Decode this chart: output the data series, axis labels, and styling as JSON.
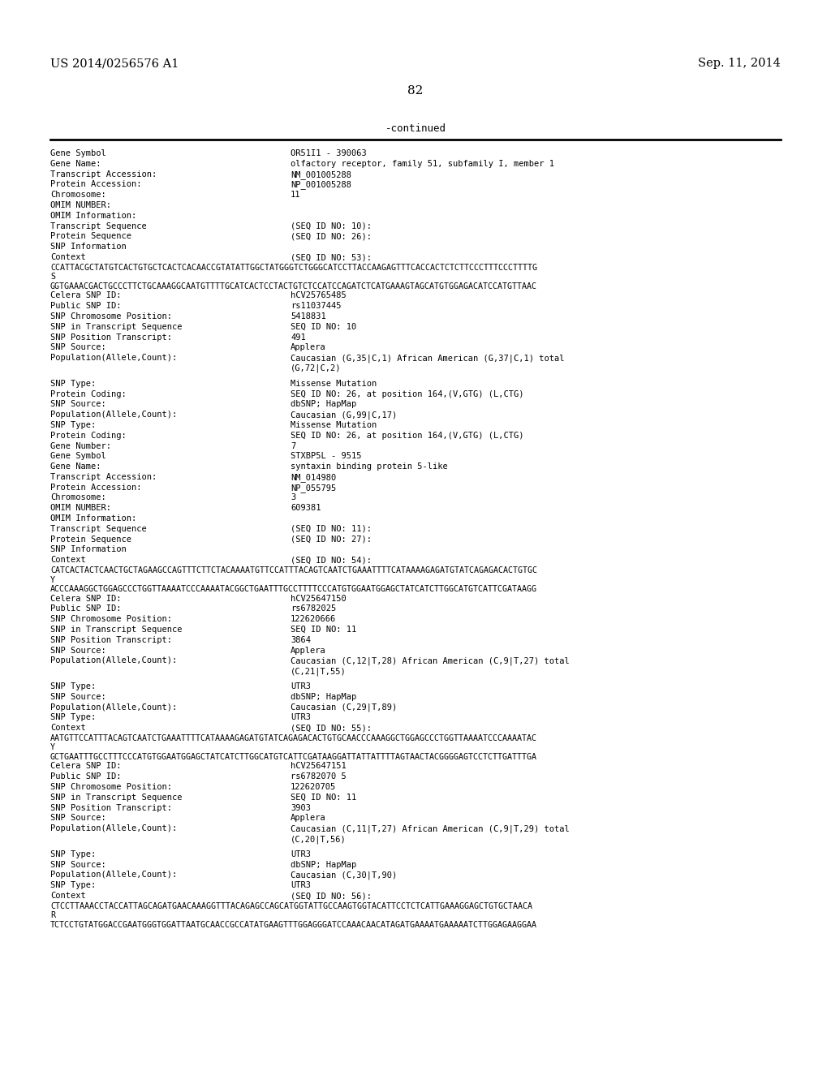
{
  "header_left": "US 2014/0256576 A1",
  "header_right": "Sep. 11, 2014",
  "page_number": "82",
  "continued_label": "-continued",
  "background_color": "#ffffff",
  "text_color": "#000000",
  "lines": [
    {
      "type": "normal",
      "label": "Gene Symbol",
      "value": "OR51I1 - 390063"
    },
    {
      "type": "normal",
      "label": "Gene Name:",
      "value": "olfactory receptor, family 51, subfamily I, member 1"
    },
    {
      "type": "normal",
      "label": "Transcript Accession:",
      "value": "NM_001005288"
    },
    {
      "type": "normal",
      "label": "Protein Accession:",
      "value": "NP_001005288"
    },
    {
      "type": "normal",
      "label": "Chromosome:",
      "value": "11"
    },
    {
      "type": "normal",
      "label": "OMIM NUMBER:",
      "value": ""
    },
    {
      "type": "normal",
      "label": "OMIM Information:",
      "value": ""
    },
    {
      "type": "normal",
      "label": "Transcript Sequence",
      "value": "(SEQ ID NO: 10):"
    },
    {
      "type": "normal",
      "label": "Protein Sequence",
      "value": "(SEQ ID NO: 26):"
    },
    {
      "type": "normal",
      "label": "SNP Information",
      "value": ""
    },
    {
      "type": "normal",
      "label": "Context",
      "value": "(SEQ ID NO: 53):"
    },
    {
      "type": "seq",
      "label": "",
      "value": "CCATTACGCTATGTCACTGTGCTCACTCACAACCGTATATTGGCTATGGGTCTGGGCATCCTTACCAAGAGTTTCACCACTCTCTTCCCTTTCCCTTTTG"
    },
    {
      "type": "seq",
      "label": "",
      "value": "S"
    },
    {
      "type": "seq",
      "label": "",
      "value": "GGTGAAACGACTGCCCTTCTGCAAAGGCAATGTTTTGCATCACTCCTACTGTCTCCATCCAGATCTCATGAAAGTAGCATGTGGAGACATCCATGTTAAC"
    },
    {
      "type": "normal",
      "label": "Celera SNP ID:",
      "value": "hCV25765485"
    },
    {
      "type": "normal",
      "label": "Public SNP ID:",
      "value": "rs11037445"
    },
    {
      "type": "normal",
      "label": "SNP Chromosome Position:",
      "value": "5418831"
    },
    {
      "type": "normal",
      "label": "SNP in Transcript Sequence",
      "value": "SEQ ID NO: 10"
    },
    {
      "type": "normal",
      "label": "SNP Position Transcript:",
      "value": "491"
    },
    {
      "type": "normal",
      "label": "SNP Source:",
      "value": "Applera"
    },
    {
      "type": "normal",
      "label": "Population(Allele,Count):",
      "value": "Caucasian (G,35|C,1) African American (G,37|C,1) total"
    },
    {
      "type": "cont",
      "label": "",
      "value": "(G,72|C,2)"
    },
    {
      "type": "blank",
      "label": "",
      "value": ""
    },
    {
      "type": "normal",
      "label": "SNP Type:",
      "value": "Missense Mutation"
    },
    {
      "type": "normal",
      "label": "Protein Coding:",
      "value": "SEQ ID NO: 26, at position 164,(V,GTG) (L,CTG)"
    },
    {
      "type": "normal",
      "label": "SNP Source:",
      "value": "dbSNP; HapMap"
    },
    {
      "type": "normal",
      "label": "Population(Allele,Count):",
      "value": "Caucasian (G,99|C,17)"
    },
    {
      "type": "normal",
      "label": "SNP Type:",
      "value": "Missense Mutation"
    },
    {
      "type": "normal",
      "label": "Protein Coding:",
      "value": "SEQ ID NO: 26, at position 164,(V,GTG) (L,CTG)"
    },
    {
      "type": "normal",
      "label": "Gene Number:",
      "value": "7"
    },
    {
      "type": "normal",
      "label": "Gene Symbol",
      "value": "STXBP5L - 9515"
    },
    {
      "type": "normal",
      "label": "Gene Name:",
      "value": "syntaxin binding protein 5-like"
    },
    {
      "type": "normal",
      "label": "Transcript Accession:",
      "value": "NM_014980"
    },
    {
      "type": "normal",
      "label": "Protein Accession:",
      "value": "NP_055795"
    },
    {
      "type": "normal",
      "label": "Chromosome:",
      "value": "3"
    },
    {
      "type": "normal",
      "label": "OMIM NUMBER:",
      "value": "609381"
    },
    {
      "type": "normal",
      "label": "OMIM Information:",
      "value": ""
    },
    {
      "type": "normal",
      "label": "Transcript Sequence",
      "value": "(SEQ ID NO: 11):"
    },
    {
      "type": "normal",
      "label": "Protein Sequence",
      "value": "(SEQ ID NO: 27):"
    },
    {
      "type": "normal",
      "label": "SNP Information",
      "value": ""
    },
    {
      "type": "normal",
      "label": "Context",
      "value": "(SEQ ID NO: 54):"
    },
    {
      "type": "seq",
      "label": "",
      "value": "CATCACTACTCAACTGCTAGAAGCCAGTTTCTTCTACAAAATGTTCCATTTACAGTCAATCTGAAATTTTCATAAAAGAGATGTATCAGAGACACTGTGC"
    },
    {
      "type": "seq",
      "label": "",
      "value": "Y"
    },
    {
      "type": "seq",
      "label": "",
      "value": "ACCCAAAGGCTGGAGCCCTGGTTAAAATCCCAAAATACGGCTGAATTTGCCTTTTCCCATGTGGAATGGAGCTATCATCTTGGCATGTCATTCGATAAGG"
    },
    {
      "type": "normal",
      "label": "Celera SNP ID:",
      "value": "hCV25647150"
    },
    {
      "type": "normal",
      "label": "Public SNP ID:",
      "value": "rs6782025"
    },
    {
      "type": "normal",
      "label": "SNP Chromosome Position:",
      "value": "122620666"
    },
    {
      "type": "normal",
      "label": "SNP in Transcript Sequence",
      "value": "SEQ ID NO: 11"
    },
    {
      "type": "normal",
      "label": "SNP Position Transcript:",
      "value": "3864"
    },
    {
      "type": "normal",
      "label": "SNP Source:",
      "value": "Applera"
    },
    {
      "type": "normal",
      "label": "Population(Allele,Count):",
      "value": "Caucasian (C,12|T,28) African American (C,9|T,27) total"
    },
    {
      "type": "cont",
      "label": "",
      "value": "(C,21|T,55)"
    },
    {
      "type": "blank",
      "label": "",
      "value": ""
    },
    {
      "type": "normal",
      "label": "SNP Type:",
      "value": "UTR3"
    },
    {
      "type": "normal",
      "label": "SNP Source:",
      "value": "dbSNP; HapMap"
    },
    {
      "type": "normal",
      "label": "Population(Allele,Count):",
      "value": "Caucasian (C,29|T,89)"
    },
    {
      "type": "normal",
      "label": "SNP Type:",
      "value": "UTR3"
    },
    {
      "type": "normal",
      "label": "Context",
      "value": "(SEQ ID NO: 55):"
    },
    {
      "type": "seq",
      "label": "",
      "value": "AATGTTCCATTTACAGTCAATCTGAAATTTTCATAAAAGAGATGTATCAGAGACACTGTGCAACCCAAAGGCTGGAGCCCTGGTTAAAATCCCAAAATAC"
    },
    {
      "type": "seq",
      "label": "",
      "value": "Y"
    },
    {
      "type": "seq",
      "label": "",
      "value": "GCTGAATTTGCCTTTCCCATGTGGAATGGAGCTATCATCTTGGCATGTCATTCGATAAGGATTATTATTTTAGTAACTACGGGGAGTCCTCTTGATTTGA"
    },
    {
      "type": "normal",
      "label": "Celera SNP ID:",
      "value": "hCV25647151"
    },
    {
      "type": "normal",
      "label": "Public SNP ID:",
      "value": "rs6782070 5"
    },
    {
      "type": "normal",
      "label": "SNP Chromosome Position:",
      "value": "122620705"
    },
    {
      "type": "normal",
      "label": "SNP in Transcript Sequence",
      "value": "SEQ ID NO: 11"
    },
    {
      "type": "normal",
      "label": "SNP Position Transcript:",
      "value": "3903"
    },
    {
      "type": "normal",
      "label": "SNP Source:",
      "value": "Applera"
    },
    {
      "type": "normal",
      "label": "Population(Allele,Count):",
      "value": "Caucasian (C,11|T,27) African American (C,9|T,29) total"
    },
    {
      "type": "cont",
      "label": "",
      "value": "(C,20|T,56)"
    },
    {
      "type": "blank",
      "label": "",
      "value": ""
    },
    {
      "type": "normal",
      "label": "SNP Type:",
      "value": "UTR3"
    },
    {
      "type": "normal",
      "label": "SNP Source:",
      "value": "dbSNP; HapMap"
    },
    {
      "type": "normal",
      "label": "Population(Allele,Count):",
      "value": "Caucasian (C,30|T,90)"
    },
    {
      "type": "normal",
      "label": "SNP Type:",
      "value": "UTR3"
    },
    {
      "type": "normal",
      "label": "Context",
      "value": "(SEQ ID NO: 56):"
    },
    {
      "type": "seq",
      "label": "",
      "value": "CTCCTTAAACCTACCATTAGCAGATGAACAAAGGTTTACAGAGCCAGCATGGTATTGCCAAGTGGTACATTCCTCTCATTGAAAGGAGCTGTGCTAACA"
    },
    {
      "type": "seq",
      "label": "",
      "value": "R"
    },
    {
      "type": "seq",
      "label": "",
      "value": "TCTCCTGTATGGACCGAATGGGTGGATTAATGCAACCGCCATATGAAGTTTGGAGGGATCCAAACAACATAGATGAAAATGAAAAATCTTGGAGAAGGAA"
    }
  ]
}
